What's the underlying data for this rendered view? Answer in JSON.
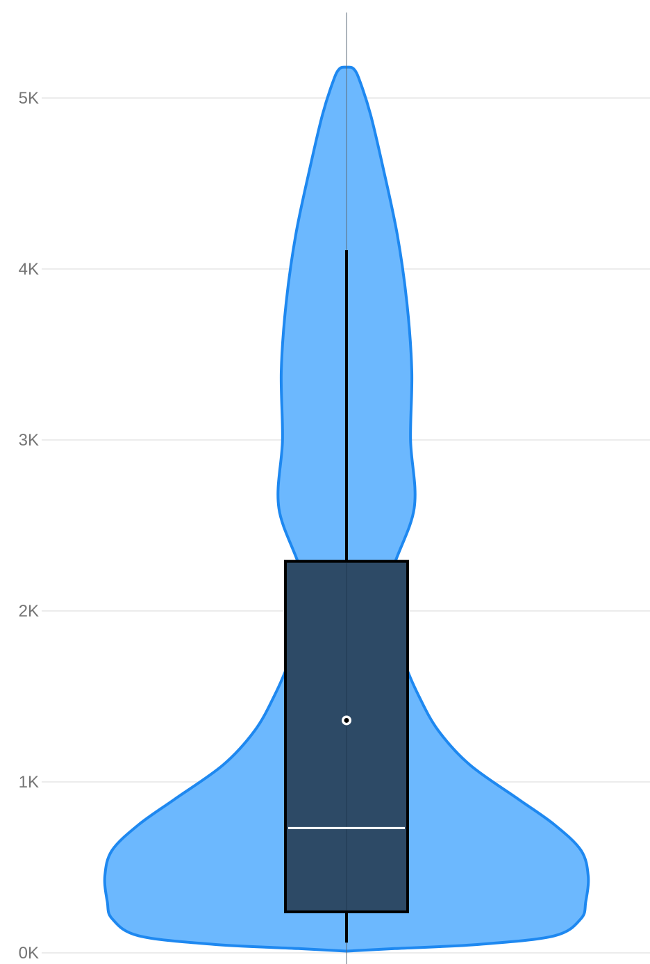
{
  "chart_data": {
    "type": "violin",
    "y_ticks": [
      {
        "value": 0,
        "label": "0K"
      },
      {
        "value": 1000,
        "label": "1K"
      },
      {
        "value": 2000,
        "label": "2K"
      },
      {
        "value": 3000,
        "label": "3K"
      },
      {
        "value": 4000,
        "label": "4K"
      },
      {
        "value": 5000,
        "label": "5K"
      }
    ],
    "ylim": [
      -10,
      5500
    ],
    "grid": true,
    "legend": "none",
    "box": {
      "whisker_low": 60,
      "q1": 240,
      "median": 730,
      "mean": 1360,
      "q3": 2290,
      "whisker_high": 4110
    },
    "density": [
      {
        "y": 10,
        "w": 0.0
      },
      {
        "y": 25,
        "w": 0.2
      },
      {
        "y": 50,
        "w": 0.55
      },
      {
        "y": 100,
        "w": 0.86
      },
      {
        "y": 200,
        "w": 0.97
      },
      {
        "y": 300,
        "w": 0.99
      },
      {
        "y": 450,
        "w": 1.0
      },
      {
        "y": 600,
        "w": 0.97
      },
      {
        "y": 750,
        "w": 0.86
      },
      {
        "y": 900,
        "w": 0.71
      },
      {
        "y": 1100,
        "w": 0.51
      },
      {
        "y": 1300,
        "w": 0.38
      },
      {
        "y": 1500,
        "w": 0.3
      },
      {
        "y": 1700,
        "w": 0.24
      },
      {
        "y": 1900,
        "w": 0.21
      },
      {
        "y": 2200,
        "w": 0.185
      },
      {
        "y": 2600,
        "w": 0.28
      },
      {
        "y": 3000,
        "w": 0.265
      },
      {
        "y": 3400,
        "w": 0.27
      },
      {
        "y": 3800,
        "w": 0.25
      },
      {
        "y": 4200,
        "w": 0.21
      },
      {
        "y": 4600,
        "w": 0.15
      },
      {
        "y": 4900,
        "w": 0.1
      },
      {
        "y": 5100,
        "w": 0.055
      },
      {
        "y": 5170,
        "w": 0.03
      },
      {
        "y": 5180,
        "w": 0.0
      }
    ],
    "colors": {
      "violin_fill": "#6cb8fe",
      "violin_stroke": "#1e88f0",
      "box_fill": "#2d4a66",
      "box_stroke": "#000000",
      "median_line": "#ffffff",
      "grid": "#e5e5e5",
      "axis_line": "#5b6b78"
    }
  }
}
